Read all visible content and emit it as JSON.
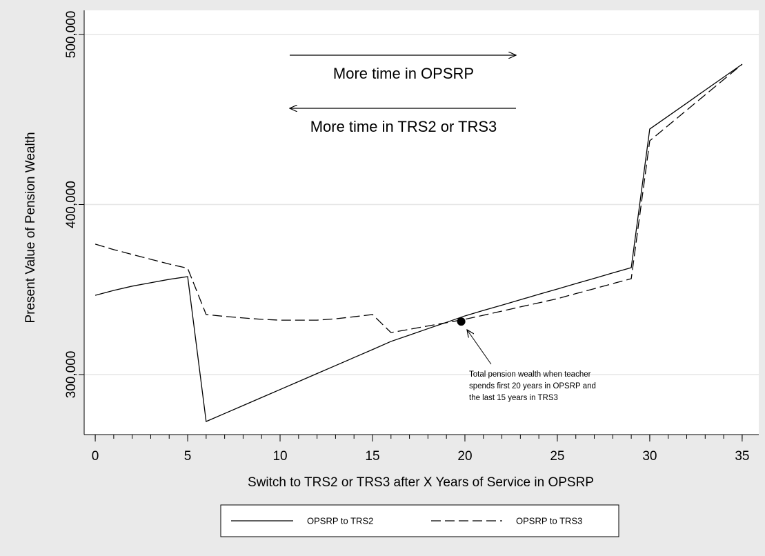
{
  "chart_data": {
    "type": "line",
    "xlabel": "Switch to TRS2 or TRS3 after X Years of Service in OPSRP",
    "ylabel": "Present Value of Pension Wealth",
    "x": [
      0,
      1,
      2,
      3,
      4,
      5,
      6,
      7,
      8,
      9,
      10,
      11,
      12,
      13,
      14,
      15,
      16,
      17,
      18,
      19,
      20,
      21,
      22,
      23,
      24,
      25,
      26,
      27,
      28,
      29,
      30,
      31,
      32,
      33,
      34,
      35
    ],
    "series": [
      {
        "name": "OPSRP to TRS2",
        "color": "#000000",
        "dash": "solid",
        "values": [
          346600,
          349500,
          352000,
          354000,
          356000,
          357600,
          272400,
          277100,
          281800,
          286500,
          291200,
          295900,
          300600,
          305300,
          310000,
          314700,
          319500,
          323200,
          327000,
          330700,
          334500,
          337700,
          340800,
          344000,
          347200,
          350300,
          353500,
          356600,
          359800,
          362900,
          444400,
          452000,
          459600,
          467300,
          474900,
          482500
        ]
      },
      {
        "name": "OPSRP to TRS3",
        "color": "#000000",
        "dash": "dashed",
        "values": [
          376700,
          373500,
          370600,
          367800,
          365000,
          362500,
          335300,
          334200,
          333300,
          332500,
          332000,
          332000,
          332000,
          332800,
          334000,
          335300,
          324700,
          326600,
          328600,
          330500,
          332500,
          334900,
          337300,
          339800,
          342200,
          344600,
          347600,
          350500,
          353500,
          356400,
          437500,
          446500,
          455500,
          464500,
          473500,
          482500
        ]
      }
    ],
    "xlim": [
      -0.6,
      35.9
    ],
    "ylim": [
      264700,
      514200
    ],
    "xticks": [
      0,
      5,
      10,
      15,
      20,
      25,
      30,
      35
    ],
    "xminorticks": [
      0,
      1,
      2,
      3,
      4,
      5,
      6,
      7,
      8,
      9,
      10,
      11,
      12,
      13,
      14,
      15,
      16,
      17,
      18,
      19,
      20,
      21,
      22,
      23,
      24,
      25,
      26,
      27,
      28,
      29,
      30,
      31,
      32,
      33,
      34,
      35
    ],
    "yticks": [
      {
        "value": 300000,
        "label": "300,000"
      },
      {
        "value": 400000,
        "label": "400,000"
      },
      {
        "value": 500000,
        "label": "500,000"
      }
    ],
    "grid": true,
    "marker": {
      "x": 19.8,
      "y": 331200
    },
    "annotations": {
      "right_arrow": "More time in OPSRP",
      "left_arrow": "More time in TRS2 or TRS3",
      "note": [
        "Total pension wealth when teacher",
        "spends first 20 years in OPSRP and",
        "the last 15 years in TRS3"
      ]
    }
  }
}
